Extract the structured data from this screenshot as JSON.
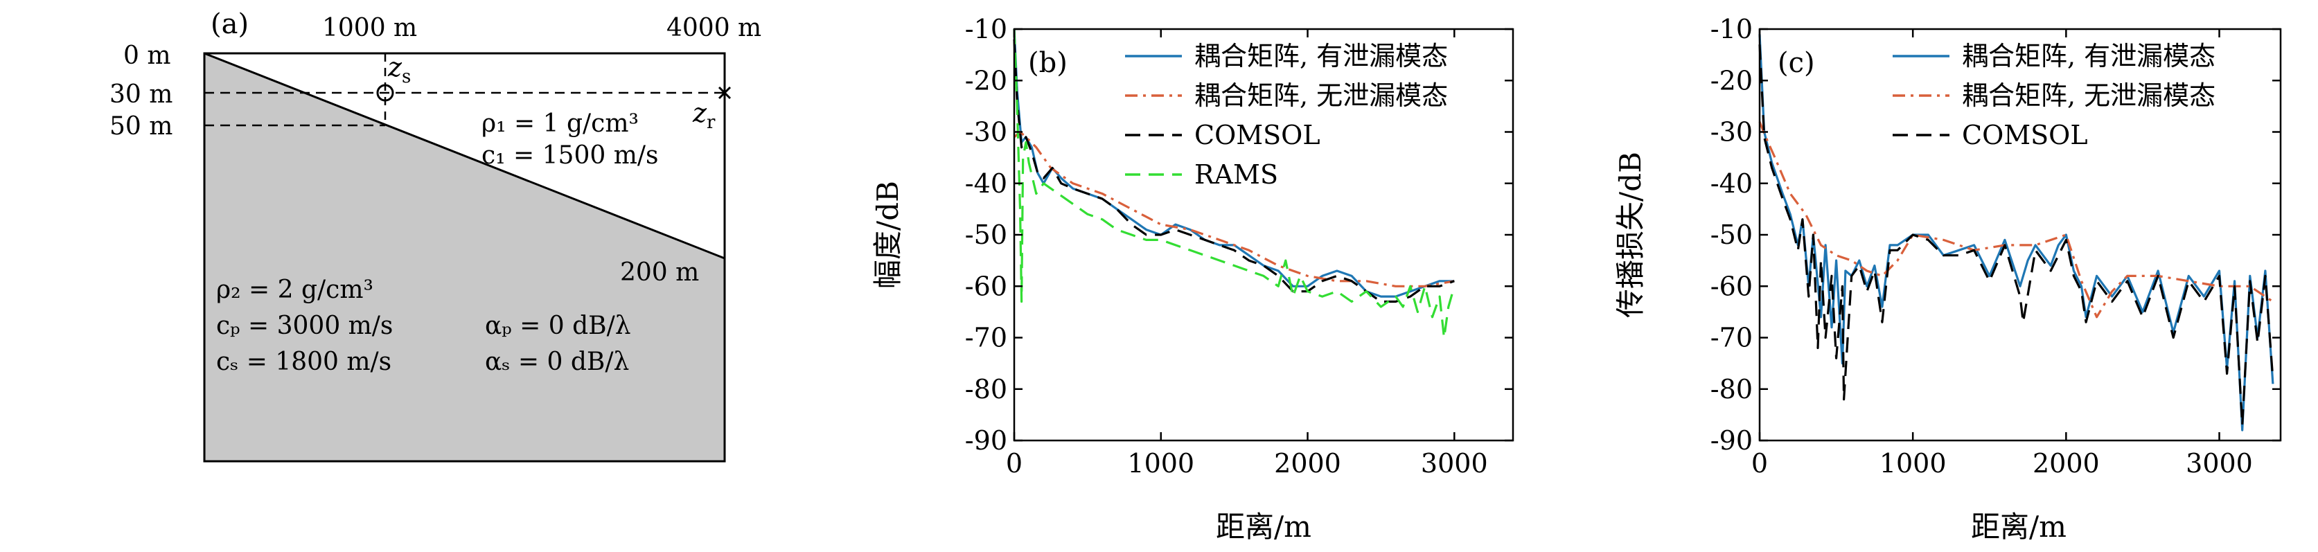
{
  "panel_a": {
    "tag": "(a)",
    "top_labels": [
      "1000 m",
      "4000 m"
    ],
    "depth_labels": [
      "0 m",
      "30 m",
      "50 m"
    ],
    "bottom_depth_label": "200 m",
    "source_label": "z",
    "source_sub": "s",
    "receiver_label": "z",
    "receiver_sub": "r",
    "water": {
      "rho": "ρ₁ = 1 g/cm³",
      "c": "c₁ = 1500 m/s"
    },
    "sediment": {
      "rho": "ρ₂ = 2 g/cm³",
      "cp": "cₚ = 3000 m/s",
      "cs": "cₛ = 1800 m/s",
      "alpha_p": "αₚ = 0 dB/λ",
      "alpha_s": "αₛ = 0 dB/λ"
    },
    "colors": {
      "seabed": "#c8c8c8"
    }
  },
  "chart_data": [
    {
      "type": "line",
      "panel": "(b)",
      "xlabel": "距离/m",
      "ylabel": "幅度/dB",
      "xlim": [
        0,
        3400
      ],
      "ylim": [
        -90,
        -10
      ],
      "xticks": [
        0,
        1000,
        2000,
        3000
      ],
      "yticks": [
        -10,
        -20,
        -30,
        -40,
        -50,
        -60,
        -70,
        -80,
        -90
      ],
      "grid": false,
      "legend_position": "top-right",
      "series": [
        {
          "name": "耦合矩阵, 有泄漏模态",
          "color": "#1f77b4",
          "style": "solid",
          "x": [
            0,
            20,
            50,
            80,
            120,
            160,
            200,
            260,
            320,
            400,
            500,
            600,
            700,
            800,
            900,
            1000,
            1100,
            1200,
            1300,
            1400,
            1500,
            1600,
            1700,
            1800,
            1900,
            2000,
            2100,
            2200,
            2300,
            2400,
            2500,
            2600,
            2700,
            2800,
            2900,
            3000
          ],
          "y": [
            -10,
            -22,
            -32,
            -31,
            -33,
            -38,
            -40,
            -37,
            -39,
            -41,
            -42,
            -43,
            -45,
            -47,
            -49,
            -50,
            -48,
            -49,
            -51,
            -52,
            -52,
            -54,
            -56,
            -57,
            -60,
            -60,
            -58,
            -57,
            -58,
            -61,
            -62,
            -62,
            -61,
            -60,
            -59,
            -59
          ]
        },
        {
          "name": "耦合矩阵, 无泄漏模态",
          "color": "#d9603b",
          "style": "dashdot",
          "x": [
            0,
            40,
            80,
            150,
            250,
            400,
            600,
            800,
            1000,
            1200,
            1400,
            1600,
            1800,
            2000,
            2200,
            2400,
            2600,
            2800,
            3000
          ],
          "y": [
            -31,
            -30,
            -31,
            -33,
            -37,
            -40,
            -42,
            -45,
            -48,
            -49,
            -51,
            -53,
            -56,
            -58,
            -59,
            -59,
            -60,
            -60,
            -59
          ]
        },
        {
          "name": "COMSOL",
          "color": "#000000",
          "style": "dashed",
          "x": [
            0,
            20,
            50,
            80,
            120,
            160,
            200,
            260,
            320,
            400,
            500,
            600,
            700,
            800,
            900,
            1000,
            1100,
            1200,
            1300,
            1400,
            1500,
            1600,
            1700,
            1800,
            1900,
            2000,
            2100,
            2200,
            2300,
            2400,
            2500,
            2600,
            2700,
            2800,
            2900,
            3000
          ],
          "y": [
            -12,
            -24,
            -33,
            -31,
            -34,
            -38,
            -39,
            -37,
            -40,
            -41,
            -42,
            -43,
            -45,
            -48,
            -50,
            -50,
            -49,
            -50,
            -51,
            -52,
            -53,
            -55,
            -56,
            -58,
            -61,
            -61,
            -59,
            -58,
            -59,
            -61,
            -63,
            -63,
            -62,
            -60,
            -60,
            -59
          ]
        },
        {
          "name": "RAMS",
          "color": "#33dd33",
          "style": "dashed",
          "x": [
            0,
            20,
            40,
            50,
            60,
            80,
            100,
            150,
            200,
            300,
            400,
            500,
            600,
            700,
            800,
            900,
            1000,
            1100,
            1200,
            1300,
            1400,
            1500,
            1600,
            1700,
            1800,
            1850,
            1900,
            1950,
            2000,
            2100,
            2200,
            2300,
            2400,
            2500,
            2600,
            2650,
            2700,
            2750,
            2800,
            2850,
            2900,
            2930,
            2960,
            3000
          ],
          "y": [
            -10,
            -25,
            -45,
            -63,
            -35,
            -32,
            -36,
            -42,
            -40,
            -42,
            -44,
            -46,
            -47,
            -49,
            -50,
            -51,
            -51,
            -52,
            -53,
            -54,
            -55,
            -56,
            -57,
            -58,
            -60,
            -55,
            -62,
            -58,
            -61,
            -62,
            -61,
            -63,
            -61,
            -64,
            -62,
            -64,
            -60,
            -65,
            -60,
            -66,
            -62,
            -70,
            -64,
            -60
          ]
        }
      ]
    },
    {
      "type": "line",
      "panel": "(c)",
      "xlabel": "距离/m",
      "ylabel": "传播损失/dB",
      "xlim": [
        0,
        3400
      ],
      "ylim": [
        -90,
        -10
      ],
      "xticks": [
        0,
        1000,
        2000,
        3000
      ],
      "yticks": [
        -10,
        -20,
        -30,
        -40,
        -50,
        -60,
        -70,
        -80,
        -90
      ],
      "grid": false,
      "legend_position": "top-right",
      "series": [
        {
          "name": "耦合矩阵, 有泄漏模态",
          "color": "#1f77b4",
          "style": "solid",
          "x": [
            0,
            30,
            80,
            150,
            200,
            250,
            280,
            320,
            350,
            400,
            430,
            470,
            500,
            540,
            560,
            600,
            650,
            700,
            750,
            800,
            850,
            900,
            1000,
            1100,
            1200,
            1300,
            1400,
            1500,
            1600,
            1700,
            1750,
            1800,
            1900,
            1950,
            2000,
            2050,
            2100,
            2130,
            2200,
            2300,
            2400,
            2500,
            2600,
            2700,
            2800,
            2900,
            3000,
            3050,
            3100,
            3150,
            3200,
            3250,
            3300,
            3350
          ],
          "y": [
            -11,
            -30,
            -36,
            -42,
            -46,
            -52,
            -47,
            -60,
            -50,
            -66,
            -52,
            -68,
            -55,
            -75,
            -57,
            -58,
            -55,
            -60,
            -56,
            -64,
            -52,
            -52,
            -50,
            -50,
            -54,
            -53,
            -52,
            -58,
            -51,
            -60,
            -55,
            -52,
            -56,
            -52,
            -50,
            -57,
            -60,
            -66,
            -58,
            -62,
            -58,
            -65,
            -57,
            -69,
            -58,
            -62,
            -57,
            -76,
            -59,
            -88,
            -58,
            -70,
            -57,
            -79
          ]
        },
        {
          "name": "耦合矩阵, 无泄漏模态",
          "color": "#d9603b",
          "style": "dashdot",
          "x": [
            0,
            40,
            100,
            200,
            300,
            400,
            500,
            600,
            700,
            800,
            900,
            1000,
            1200,
            1400,
            1600,
            1800,
            2000,
            2100,
            2200,
            2300,
            2400,
            2600,
            2800,
            3000,
            3200,
            3350
          ],
          "y": [
            -28,
            -31,
            -35,
            -42,
            -46,
            -52,
            -54,
            -55,
            -57,
            -58,
            -55,
            -50,
            -51,
            -53,
            -52,
            -52,
            -50,
            -59,
            -66,
            -61,
            -58,
            -58,
            -59,
            -60,
            -60,
            -63
          ]
        },
        {
          "name": "COMSOL",
          "color": "#000000",
          "style": "dashed",
          "x": [
            0,
            30,
            80,
            150,
            200,
            250,
            280,
            320,
            350,
            380,
            400,
            430,
            470,
            500,
            540,
            550,
            600,
            650,
            700,
            750,
            800,
            850,
            900,
            1000,
            1100,
            1200,
            1300,
            1400,
            1500,
            1600,
            1700,
            1720,
            1800,
            1900,
            2000,
            2050,
            2100,
            2130,
            2200,
            2300,
            2400,
            2500,
            2600,
            2700,
            2800,
            2900,
            3000,
            3050,
            3100,
            3150,
            3200,
            3250,
            3300,
            3350
          ],
          "y": [
            -13,
            -31,
            -37,
            -43,
            -47,
            -53,
            -47,
            -62,
            -50,
            -72,
            -55,
            -70,
            -58,
            -74,
            -60,
            -82,
            -58,
            -56,
            -61,
            -57,
            -67,
            -53,
            -53,
            -50,
            -51,
            -54,
            -54,
            -53,
            -59,
            -52,
            -62,
            -67,
            -53,
            -57,
            -51,
            -58,
            -61,
            -67,
            -59,
            -63,
            -59,
            -66,
            -58,
            -70,
            -59,
            -63,
            -58,
            -77,
            -60,
            -87,
            -59,
            -71,
            -58,
            -78
          ]
        }
      ]
    }
  ]
}
